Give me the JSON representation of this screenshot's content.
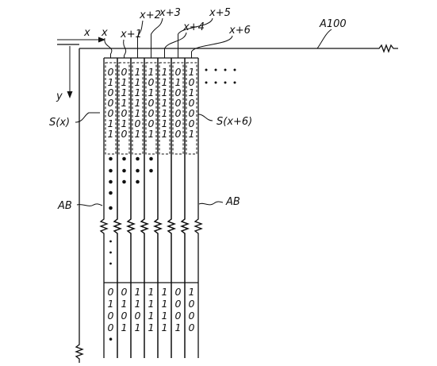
{
  "labels": {
    "axis_x": "x",
    "axis_y": "y",
    "ref_line": "A100",
    "seq_first": "S(x)",
    "seq_last": "S(x+6)",
    "ab_left": "AB",
    "ab_right": "AB"
  },
  "columns": [
    {
      "label": "x",
      "top_bits": [
        "0",
        "1",
        "0",
        "0",
        "0",
        "1",
        "1"
      ],
      "bottom_bits": [
        "0",
        "1",
        "0",
        "0",
        "•"
      ]
    },
    {
      "label": "x+1",
      "top_bits": [
        "0",
        "1",
        "1",
        "1",
        "0",
        "1",
        "0"
      ],
      "bottom_bits": [
        "0",
        "1",
        "0",
        "1",
        ""
      ]
    },
    {
      "label": "x+2",
      "top_bits": [
        "1",
        "1",
        "1",
        "1",
        "1",
        "0",
        "1"
      ],
      "bottom_bits": [
        "1",
        "1",
        "0",
        "1",
        ""
      ]
    },
    {
      "label": "x+3",
      "top_bits": [
        "1",
        "0",
        "1",
        "0",
        "0",
        "0",
        "1"
      ],
      "bottom_bits": [
        "1",
        "1",
        "1",
        "1",
        ""
      ]
    },
    {
      "label": "x+4",
      "top_bits": [
        "1",
        "1",
        "1",
        "1",
        "1",
        "1",
        "1"
      ],
      "bottom_bits": [
        "1",
        "1",
        "1",
        "1",
        ""
      ]
    },
    {
      "label": "x+5",
      "top_bits": [
        "0",
        "1",
        "0",
        "0",
        "0",
        "0",
        "0"
      ],
      "bottom_bits": [
        "0",
        "0",
        "0",
        "1",
        ""
      ]
    },
    {
      "label": "x+6",
      "top_bits": [
        "1",
        "0",
        "1",
        "0",
        "0",
        "0",
        "1"
      ],
      "bottom_bits": [
        "1",
        "0",
        "0",
        "0",
        ""
      ]
    }
  ],
  "dot_rows": [
    {
      "count": 4
    },
    {
      "count": 4
    },
    {
      "count": 3
    }
  ]
}
